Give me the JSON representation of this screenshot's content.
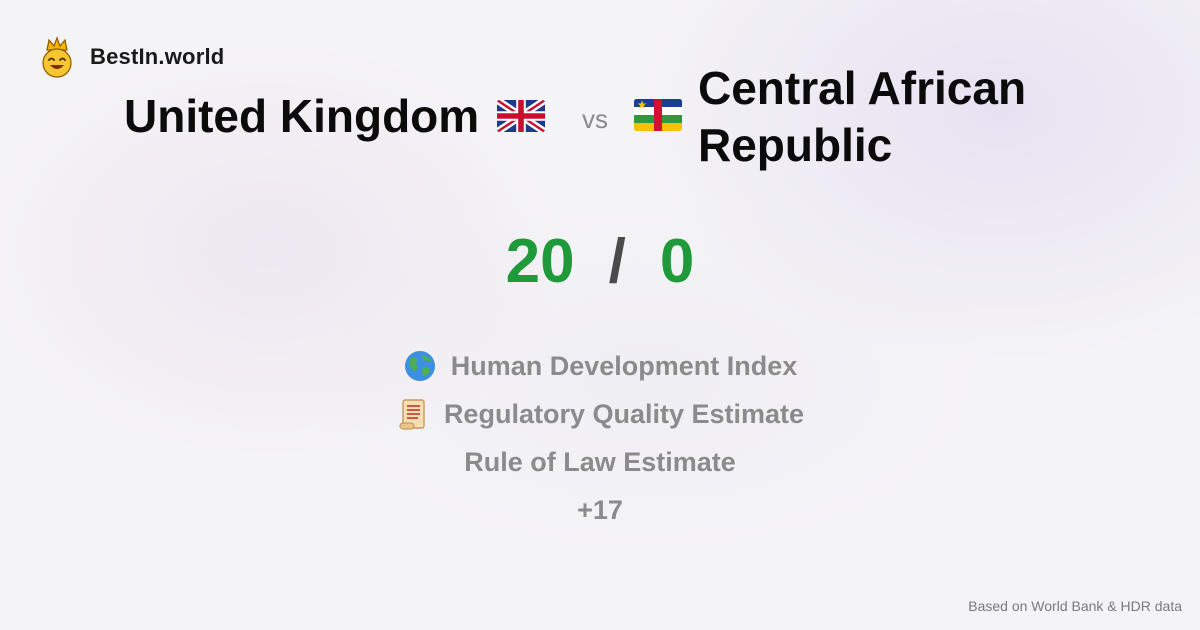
{
  "brand": {
    "name": "BestIn.world",
    "logo_icon": "crown-smiley-icon"
  },
  "comparison": {
    "left": {
      "name": "United Kingdom",
      "flag_icon": "uk-flag-icon"
    },
    "vs_label": "vs",
    "right": {
      "name": "Central African Republic",
      "flag_icon": "central-african-republic-flag-icon"
    }
  },
  "score": {
    "left": "20",
    "separator": "/",
    "right": "0"
  },
  "metrics": [
    {
      "label": "Human Development Index",
      "icon": "globe-icon"
    },
    {
      "label": "Regulatory Quality Estimate",
      "icon": "scroll-icon"
    },
    {
      "label": "Rule of Law Estimate",
      "icon": ""
    }
  ],
  "more_label": "+17",
  "footer": {
    "source": "Based on World Bank & HDR data"
  },
  "colors": {
    "score": "#1f9a3a",
    "muted_text": "#8b8b8b",
    "title_text": "#0b0b0b"
  }
}
